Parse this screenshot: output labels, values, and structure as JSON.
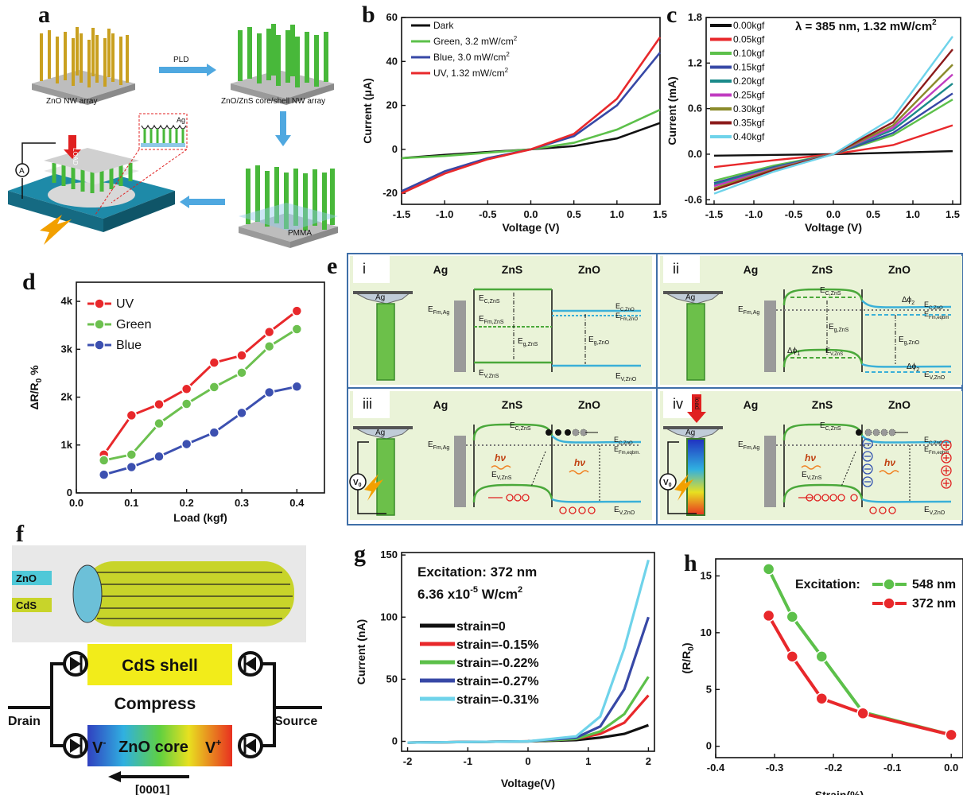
{
  "panel_labels": {
    "a": "a",
    "b": "b",
    "c": "c",
    "d": "d",
    "e": "e",
    "f": "f",
    "g": "g",
    "h": "h"
  },
  "panel_a": {
    "label_zno_array": "ZnO NW array",
    "label_pld": "PLD",
    "label_core_shell": "ZnO/ZnS core/shell NW array",
    "label_ag": "Ag",
    "label_load": "LOAD",
    "label_pmma": "PMMA",
    "label_ammeter": "A"
  },
  "panel_e": {
    "roman": [
      "i",
      "ii",
      "iii",
      "iv"
    ],
    "col_ag": "Ag",
    "col_zns": "ZnS",
    "col_zno": "ZnO",
    "ec_zns": "E",
    "ec_zns_sub": "C,ZnS",
    "efm_zns": "E",
    "efm_zns_sub": "Fm,ZnS",
    "eg_zns": "E",
    "eg_zns_sub": "g,ZnS",
    "ev_zns": "E",
    "ev_zns_sub": "V,ZnS",
    "ec_zno": "E",
    "ec_zno_sub": "C,ZnO",
    "efm_zno": "E",
    "efm_zno_sub": "Fm,ZnO",
    "eg_zno": "E",
    "eg_zno_sub": "g,ZnO",
    "ev_zno": "E",
    "ev_zno_sub": "V,ZnO",
    "efm_ag": "E",
    "efm_ag_sub": "Fm,Ag",
    "efm_eqbm": "E",
    "efm_eqbm_sub": "Fm,eqbm",
    "efm_eqbm_dot": "E",
    "efm_eqbm_dot_sub": "Fm,eqbm.",
    "dphi1": "Δϕ",
    "dphi1_sub": "1",
    "dphi2": "Δϕ",
    "dphi2_sub": "2",
    "hv": "hν",
    "ag_tip": "Ag",
    "v0": "V",
    "v0_sub": "0",
    "load": "load"
  },
  "panel_f": {
    "legend_zno": "ZnO",
    "legend_cds": "CdS",
    "cds_shell": "CdS shell",
    "compress": "Compress",
    "zno_core": "ZnO core",
    "v_minus": "V",
    "v_minus_sup": "-",
    "v_plus": "V",
    "v_plus_sup": "+",
    "drain": "Drain",
    "source": "Source",
    "direction": "[0001]"
  },
  "colors": {
    "black": "#111111",
    "red": "#e8282b",
    "green": "#5cc04a",
    "blue": "#3748a6",
    "teal": "#1a8a8a",
    "magenta": "#c03cc0",
    "olive": "#8a8a2a",
    "darkred": "#8b1a1a",
    "cyan": "#6fd3ea",
    "ltgreen": "#6cc04f",
    "ltblue": "#3c50b0"
  },
  "chart_data": [
    {
      "id": "b",
      "type": "line",
      "xlabel": "Voltage (V)",
      "ylabel": "Current (μA)",
      "xlim": [
        -1.5,
        1.5
      ],
      "ylim": [
        -25,
        60
      ],
      "xticks": [
        "-1.5",
        "-1.0",
        "-0.5",
        "0.0",
        "0.5",
        "1.0",
        "1.5"
      ],
      "yticks": [
        "-20",
        "0",
        "20",
        "40",
        "60"
      ],
      "series": [
        {
          "name": "Dark",
          "color": "#111111",
          "x": [
            -1.5,
            -1.0,
            -0.5,
            0,
            0.5,
            1.0,
            1.5
          ],
          "y": [
            -4,
            -2.5,
            -1.2,
            0,
            1.5,
            5,
            12
          ]
        },
        {
          "name": "Green, 3.2 mW/cm²",
          "name_main": "Green, 3.2 mW/cm",
          "name_sup": "2",
          "color": "#5cc04a",
          "x": [
            -1.5,
            -1.0,
            -0.5,
            0,
            0.5,
            1.0,
            1.5
          ],
          "y": [
            -4,
            -3,
            -1.5,
            0,
            3,
            9,
            18
          ]
        },
        {
          "name": "Blue, 3.0 mW/cm²",
          "name_main": "Blue, 3.0 mW/cm",
          "name_sup": "2",
          "color": "#3748a6",
          "x": [
            -1.5,
            -1.0,
            -0.5,
            0,
            0.5,
            1.0,
            1.5
          ],
          "y": [
            -19,
            -10,
            -4,
            0,
            6,
            20,
            44
          ]
        },
        {
          "name": "UV, 1.32 mW/cm²",
          "name_main": "UV, 1.32 mW/cm",
          "name_sup": "2",
          "color": "#e8282b",
          "x": [
            -1.5,
            -1.0,
            -0.5,
            0,
            0.5,
            1.0,
            1.5
          ],
          "y": [
            -20,
            -11,
            -4.5,
            0,
            7,
            23,
            51
          ]
        }
      ]
    },
    {
      "id": "c",
      "type": "line",
      "title": "λ = 385 nm, 1.32 mW/cm²",
      "title_main": "λ = 385 nm, 1.32 mW/cm",
      "title_sup": "2",
      "xlabel": "Voltage (V)",
      "ylabel": "Current (mA)",
      "xlim": [
        -1.6,
        1.6
      ],
      "ylim": [
        -0.66,
        1.8
      ],
      "xticks": [
        "-1.5",
        "-1.0",
        "-0.5",
        "0.0",
        "0.5",
        "1.0",
        "1.5"
      ],
      "yticks": [
        "-0.6",
        "0.0",
        "0.6",
        "1.2",
        "1.8"
      ],
      "series": [
        {
          "name": "0.00kgf",
          "color": "#111111",
          "x": [
            -1.5,
            0,
            1.5
          ],
          "y": [
            -0.02,
            0,
            0.04
          ]
        },
        {
          "name": "0.05kgf",
          "color": "#e8282b",
          "x": [
            -1.5,
            -0.75,
            0,
            0.75,
            1.5
          ],
          "y": [
            -0.17,
            -0.08,
            0,
            0.12,
            0.38
          ]
        },
        {
          "name": "0.10kgf",
          "color": "#5cc04a",
          "x": [
            -1.5,
            -0.75,
            0,
            0.75,
            1.5
          ],
          "y": [
            -0.35,
            -0.15,
            0,
            0.25,
            0.72
          ]
        },
        {
          "name": "0.15kgf",
          "color": "#3748a6",
          "x": [
            -1.5,
            -0.75,
            0,
            0.75,
            1.5
          ],
          "y": [
            -0.38,
            -0.17,
            0,
            0.28,
            0.8
          ]
        },
        {
          "name": "0.20kgf",
          "color": "#1a8a8a",
          "x": [
            -1.5,
            -0.75,
            0,
            0.75,
            1.5
          ],
          "y": [
            -0.4,
            -0.18,
            0,
            0.32,
            0.93
          ]
        },
        {
          "name": "0.25kgf",
          "color": "#c03cc0",
          "x": [
            -1.5,
            -0.75,
            0,
            0.75,
            1.5
          ],
          "y": [
            -0.42,
            -0.19,
            0,
            0.35,
            1.05
          ]
        },
        {
          "name": "0.30kgf",
          "color": "#8a8a2a",
          "x": [
            -1.5,
            -0.75,
            0,
            0.75,
            1.5
          ],
          "y": [
            -0.45,
            -0.2,
            0,
            0.38,
            1.18
          ]
        },
        {
          "name": "0.35kgf",
          "color": "#8b1a1a",
          "x": [
            -1.5,
            -0.75,
            0,
            0.75,
            1.5
          ],
          "y": [
            -0.47,
            -0.21,
            0,
            0.42,
            1.38
          ]
        },
        {
          "name": "0.40kgf",
          "color": "#6fd3ea",
          "x": [
            -1.5,
            -0.75,
            0,
            0.75,
            1.5
          ],
          "y": [
            -0.52,
            -0.23,
            0,
            0.48,
            1.55
          ]
        }
      ]
    },
    {
      "id": "d",
      "type": "line",
      "xlabel": "Load (kgf)",
      "ylabel": "ΔR/R",
      "ylabel_main": "ΔR/R",
      "ylabel_sub": "0",
      "ylabel_tail": " %",
      "xlim": [
        0.0,
        0.45
      ],
      "ylim": [
        0,
        4400
      ],
      "xticks": [
        "0.0",
        "0.1",
        "0.2",
        "0.3",
        "0.4"
      ],
      "yticks": [
        "0",
        "1k",
        "2k",
        "3k",
        "4k"
      ],
      "series": [
        {
          "name": "UV",
          "color": "#e8282b",
          "x": [
            0.05,
            0.1,
            0.15,
            0.2,
            0.25,
            0.3,
            0.35,
            0.4
          ],
          "y": [
            800,
            1620,
            1850,
            2170,
            2720,
            2870,
            3360,
            3800
          ]
        },
        {
          "name": "Green",
          "color": "#6cc04f",
          "x": [
            0.05,
            0.1,
            0.15,
            0.2,
            0.25,
            0.3,
            0.35,
            0.4
          ],
          "y": [
            680,
            800,
            1450,
            1860,
            2210,
            2510,
            3060,
            3420
          ]
        },
        {
          "name": "Blue",
          "color": "#3c50b0",
          "x": [
            0.05,
            0.1,
            0.15,
            0.2,
            0.25,
            0.3,
            0.35,
            0.4
          ],
          "y": [
            380,
            540,
            760,
            1020,
            1260,
            1670,
            2100,
            2220
          ]
        }
      ]
    },
    {
      "id": "g",
      "type": "line",
      "annotation_1": "Excitation: 372 nm",
      "annotation_2_main": "6.36 x10",
      "annotation_2_exp": "-5",
      "annotation_2_unit": " W/cm",
      "annotation_2_sup": "2",
      "xlabel": "Voltage(V)",
      "ylabel": "Current (nA)",
      "xlim": [
        -2.1,
        2.1
      ],
      "ylim": [
        -8,
        152
      ],
      "xticks": [
        "-2",
        "-1",
        "0",
        "1",
        "2"
      ],
      "yticks": [
        "0",
        "50",
        "100",
        "150"
      ],
      "series": [
        {
          "name": "strain=0",
          "color": "#111111",
          "x": [
            -2,
            0,
            0.8,
            1.2,
            1.6,
            2.0
          ],
          "y": [
            -1,
            0,
            1,
            3,
            6,
            13
          ]
        },
        {
          "name": "strain=-0.15%",
          "color": "#e8282b",
          "x": [
            -2,
            0,
            0.8,
            1.2,
            1.6,
            2.0
          ],
          "y": [
            -1,
            0,
            2,
            6,
            15,
            37
          ]
        },
        {
          "name": "strain=-0.22%",
          "color": "#5cc04a",
          "x": [
            -2,
            0,
            0.8,
            1.2,
            1.6,
            2.0
          ],
          "y": [
            -1,
            0,
            2,
            8,
            22,
            52
          ]
        },
        {
          "name": "strain=-0.27%",
          "color": "#3748a6",
          "x": [
            -2,
            0,
            0.8,
            1.2,
            1.6,
            2.0
          ],
          "y": [
            -1,
            0,
            3,
            12,
            42,
            100
          ]
        },
        {
          "name": "strain=-0.31%",
          "color": "#6fd3ea",
          "x": [
            -2,
            0,
            0.8,
            1.2,
            1.6,
            2.0
          ],
          "y": [
            -1,
            0,
            4,
            20,
            75,
            146
          ]
        }
      ]
    },
    {
      "id": "h",
      "type": "line",
      "legend_title": "Excitation:",
      "xlabel": "Strain(%)",
      "ylabel": "(R/R",
      "ylabel_main": "(R/R",
      "ylabel_sub": "0",
      "ylabel_tail": ")",
      "xlim": [
        -0.4,
        0.02
      ],
      "ylim": [
        -1,
        16.5
      ],
      "xticks": [
        "-0.4",
        "-0.3",
        "-0.2",
        "-0.1",
        "0.0"
      ],
      "yticks": [
        "0",
        "5",
        "10",
        "15"
      ],
      "series": [
        {
          "name": "548 nm",
          "color": "#5cc04a",
          "x": [
            -0.31,
            -0.27,
            -0.22,
            -0.15,
            0.0
          ],
          "y": [
            15.6,
            11.4,
            7.9,
            3.0,
            1.0
          ]
        },
        {
          "name": "372 nm",
          "color": "#e8282b",
          "x": [
            -0.31,
            -0.27,
            -0.22,
            -0.15,
            0.0
          ],
          "y": [
            11.5,
            7.9,
            4.2,
            2.9,
            1.0
          ]
        }
      ]
    }
  ]
}
